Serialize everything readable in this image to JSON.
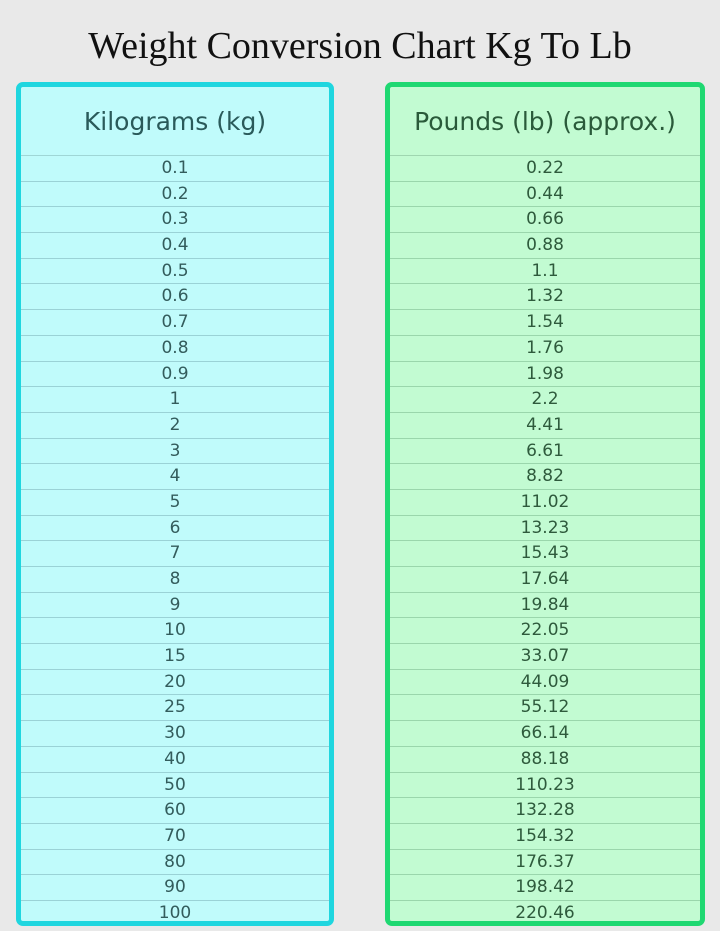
{
  "title": "Weight Conversion Chart Kg To Lb",
  "colors": {
    "kg_border": "#1fd6df",
    "kg_fill": "#c0fbfb",
    "lb_border": "#1fd872",
    "lb_fill": "#c2fbd2"
  },
  "columns": {
    "kg": "Kilograms (kg)",
    "lb": "Pounds (lb) (approx.)"
  },
  "rows": [
    {
      "kg": "0.1",
      "lb": "0.22"
    },
    {
      "kg": "0.2",
      "lb": "0.44"
    },
    {
      "kg": "0.3",
      "lb": "0.66"
    },
    {
      "kg": "0.4",
      "lb": "0.88"
    },
    {
      "kg": "0.5",
      "lb": "1.1"
    },
    {
      "kg": "0.6",
      "lb": "1.32"
    },
    {
      "kg": "0.7",
      "lb": "1.54"
    },
    {
      "kg": "0.8",
      "lb": "1.76"
    },
    {
      "kg": "0.9",
      "lb": "1.98"
    },
    {
      "kg": "1",
      "lb": "2.2"
    },
    {
      "kg": "2",
      "lb": "4.41"
    },
    {
      "kg": "3",
      "lb": "6.61"
    },
    {
      "kg": "4",
      "lb": "8.82"
    },
    {
      "kg": "5",
      "lb": "11.02"
    },
    {
      "kg": "6",
      "lb": "13.23"
    },
    {
      "kg": "7",
      "lb": "15.43"
    },
    {
      "kg": "8",
      "lb": "17.64"
    },
    {
      "kg": "9",
      "lb": "19.84"
    },
    {
      "kg": "10",
      "lb": "22.05"
    },
    {
      "kg": "15",
      "lb": "33.07"
    },
    {
      "kg": "20",
      "lb": "44.09"
    },
    {
      "kg": "25",
      "lb": "55.12"
    },
    {
      "kg": "30",
      "lb": "66.14"
    },
    {
      "kg": "40",
      "lb": "88.18"
    },
    {
      "kg": "50",
      "lb": "110.23"
    },
    {
      "kg": "60",
      "lb": "132.28"
    },
    {
      "kg": "70",
      "lb": "154.32"
    },
    {
      "kg": "80",
      "lb": "176.37"
    },
    {
      "kg": "90",
      "lb": "198.42"
    },
    {
      "kg": "100",
      "lb": "220.46"
    }
  ]
}
